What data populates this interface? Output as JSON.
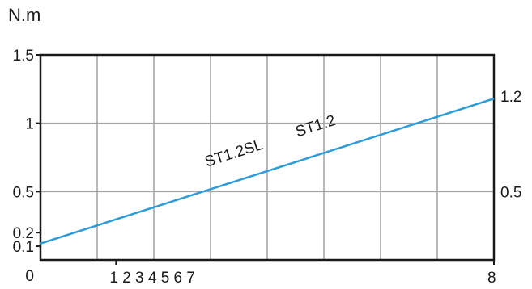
{
  "chart_data": {
    "type": "line",
    "unit_label": "N.m",
    "ylim": [
      0,
      1.5
    ],
    "xlim": [
      0,
      12
    ],
    "grid": true,
    "left_y_ticks": [
      {
        "value": 1.5,
        "label": "1.5"
      },
      {
        "value": 1.0,
        "label": "1"
      },
      {
        "value": 0.5,
        "label": "0.5"
      },
      {
        "value": 0.2,
        "label": "0.2"
      },
      {
        "value": 0.1,
        "label": "0.1"
      },
      {
        "value": 0.0,
        "label": "0"
      }
    ],
    "right_y_ticks": [
      {
        "value": 1.2,
        "label": "1.2"
      },
      {
        "value": 0.5,
        "label": "0.5"
      }
    ],
    "x_tick_labels": [
      {
        "value": 2,
        "label": "1 2 3 4 5 6 7"
      },
      {
        "value": 12,
        "label": "8"
      }
    ],
    "series": [
      {
        "name": "",
        "x": [
          0,
          12
        ],
        "y": [
          0.12,
          1.18
        ],
        "color": "#2e9bd6"
      }
    ],
    "annotations": [
      {
        "text": "ST1.2SL",
        "x": 4.4,
        "y": 0.68
      },
      {
        "text": "ST1.2",
        "x": 6.8,
        "y": 0.9
      }
    ]
  }
}
